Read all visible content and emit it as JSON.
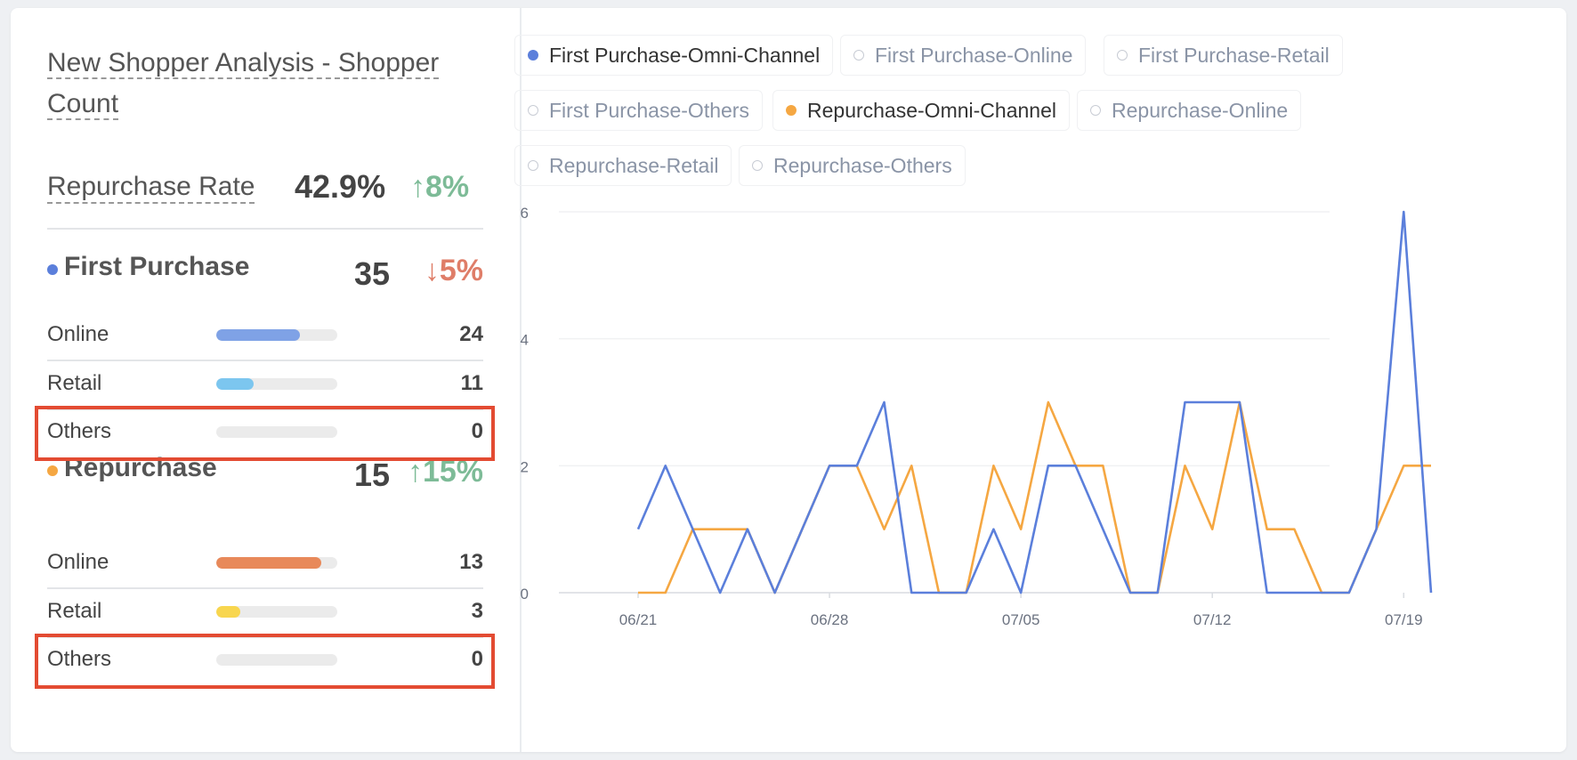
{
  "title": "New Shopper Analysis - Shopper Count",
  "repurchase_rate": {
    "label": "Repurchase Rate",
    "value": "42.9%",
    "delta": "↑8%"
  },
  "first_purchase": {
    "title": "First Purchase",
    "count": "35",
    "delta": "↓5%",
    "dot_color": "#5b7fdb",
    "items": [
      {
        "label": "Online",
        "value": "24",
        "percent": 69,
        "color": "#7fa2e6"
      },
      {
        "label": "Retail",
        "value": "11",
        "percent": 31,
        "color": "#7cc6ef"
      },
      {
        "label": "Others",
        "value": "0",
        "percent": 0,
        "color": "#cccccc"
      }
    ]
  },
  "repurchase": {
    "title": "Repurchase",
    "count": "15",
    "delta": "↑15%",
    "dot_color": "#f5a742",
    "items": [
      {
        "label": "Online",
        "value": "13",
        "percent": 87,
        "color": "#e8895a"
      },
      {
        "label": "Retail",
        "value": "3",
        "percent": 20,
        "color": "#f8d64e"
      },
      {
        "label": "Others",
        "value": "0",
        "percent": 0,
        "color": "#cccccc"
      }
    ]
  },
  "legend": [
    {
      "label": "First Purchase-Omni-Channel",
      "active": true,
      "color": "#5b7fdb"
    },
    {
      "label": "First Purchase-Online",
      "active": false,
      "color": "#c8ccd4"
    },
    {
      "label": "First Purchase-Retail",
      "active": false,
      "color": "#c8ccd4"
    },
    {
      "label": "First Purchase-Others",
      "active": false,
      "color": "#c8ccd4"
    },
    {
      "label": "Repurchase-Omni-Channel",
      "active": true,
      "color": "#f5a742"
    },
    {
      "label": "Repurchase-Online",
      "active": false,
      "color": "#c8ccd4"
    },
    {
      "label": "Repurchase-Retail",
      "active": false,
      "color": "#c8ccd4"
    },
    {
      "label": "Repurchase-Others",
      "active": false,
      "color": "#c8ccd4"
    }
  ],
  "chart_data": {
    "type": "line",
    "title": "",
    "xlabel": "",
    "ylabel": "",
    "ylim": [
      0,
      6
    ],
    "yticks": [
      "0",
      "2",
      "4",
      "6"
    ],
    "x_tick_labels": [
      {
        "label": "06/21",
        "index": 0
      },
      {
        "label": "06/28",
        "index": 7
      },
      {
        "label": "07/05",
        "index": 14
      },
      {
        "label": "07/12",
        "index": 21
      },
      {
        "label": "07/19",
        "index": 28
      }
    ],
    "series": [
      {
        "name": "First Purchase-Omni-Channel",
        "color": "#5b7fdb",
        "values": [
          1,
          2,
          1,
          0,
          1,
          0,
          1,
          2,
          2,
          3,
          0,
          0,
          0,
          1,
          0,
          2,
          2,
          1,
          0,
          0,
          3,
          3,
          3,
          0,
          0,
          0,
          0,
          1,
          6,
          0
        ]
      },
      {
        "name": "Repurchase-Omni-Channel",
        "color": "#f5a742",
        "values": [
          0,
          0,
          1,
          1,
          1,
          0,
          1,
          2,
          2,
          1,
          2,
          0,
          0,
          2,
          1,
          3,
          2,
          2,
          0,
          0,
          2,
          1,
          3,
          1,
          1,
          0,
          0,
          1,
          2,
          2
        ]
      }
    ]
  }
}
